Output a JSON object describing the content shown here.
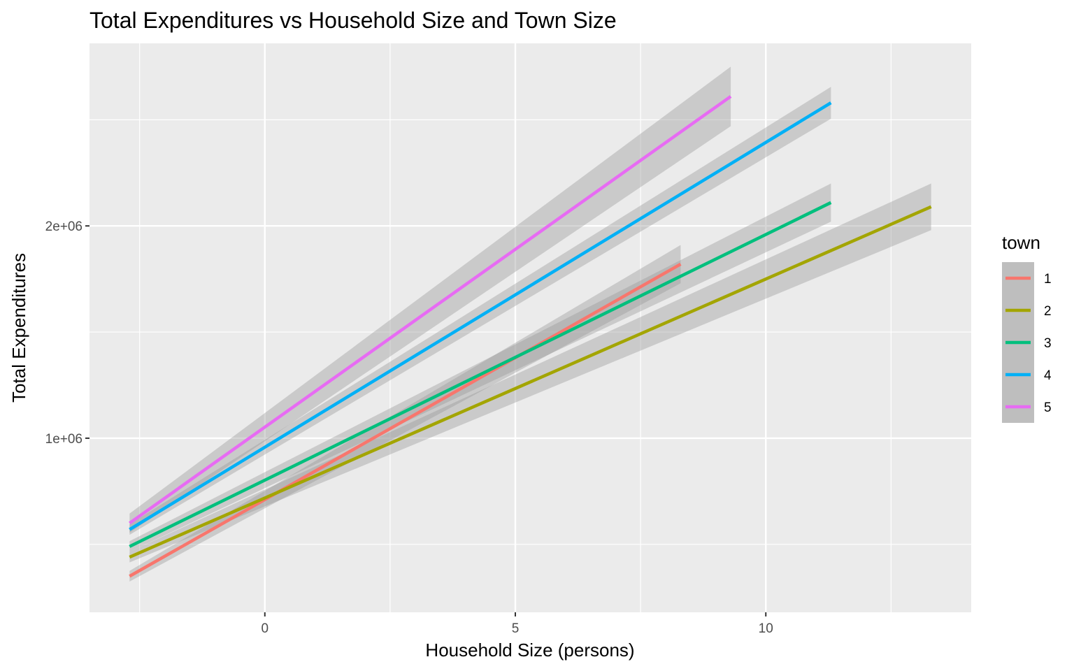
{
  "chart_data": {
    "type": "line",
    "title": "Total Expenditures vs Household Size and Town Size",
    "xlabel": "Household Size (persons)",
    "ylabel": "Total Expenditures",
    "xlim": [
      -3.5,
      14.1
    ],
    "ylim": [
      180000,
      2860000
    ],
    "x_ticks": [
      0,
      5,
      10
    ],
    "x_tick_labels": [
      "0",
      "5",
      "10"
    ],
    "x_minor_ticks": [
      -2.5,
      2.5,
      7.5,
      12.5
    ],
    "y_ticks": [
      1000000,
      2000000
    ],
    "y_tick_labels": [
      "1e+06",
      "2e+06"
    ],
    "y_minor_ticks": [
      500000,
      1500000,
      2500000
    ],
    "grid": true,
    "confidence_band": true,
    "legend": {
      "title": "town",
      "position": "right"
    },
    "series": [
      {
        "name": "1",
        "color": "#F8766D",
        "x": [
          -2.7,
          8.3
        ],
        "y": [
          350000,
          1820000
        ],
        "band_halfwidth": [
          25000,
          90000
        ]
      },
      {
        "name": "2",
        "color": "#A3A500",
        "x": [
          -2.7,
          13.3
        ],
        "y": [
          440000,
          2090000
        ],
        "band_halfwidth": [
          25000,
          110000
        ]
      },
      {
        "name": "3",
        "color": "#00BF7D",
        "x": [
          -2.7,
          11.3
        ],
        "y": [
          490000,
          2110000
        ],
        "band_halfwidth": [
          25000,
          90000
        ]
      },
      {
        "name": "4",
        "color": "#00B0F6",
        "x": [
          -2.7,
          11.3
        ],
        "y": [
          570000,
          2580000
        ],
        "band_halfwidth": [
          25000,
          75000
        ]
      },
      {
        "name": "5",
        "color": "#E76BF3",
        "x": [
          -2.7,
          9.3
        ],
        "y": [
          600000,
          2610000
        ],
        "band_halfwidth": [
          45000,
          140000
        ]
      }
    ]
  }
}
